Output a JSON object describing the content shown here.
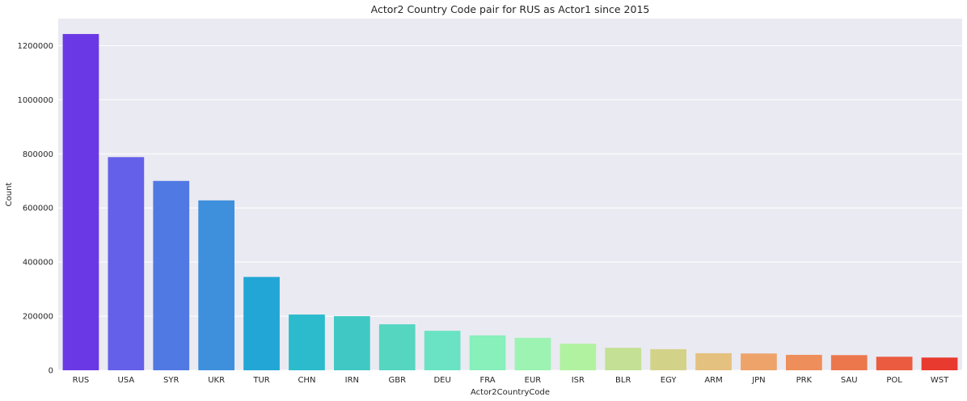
{
  "chart_data": {
    "type": "bar",
    "title": "Actor2 Country Code pair for RUS as Actor1 since 2015",
    "xlabel": "Actor2CountryCode",
    "ylabel": "Count",
    "ylim": [
      0,
      1300000
    ],
    "yticks": [
      0,
      200000,
      400000,
      600000,
      800000,
      1000000,
      1200000
    ],
    "ytick_labels": [
      "0",
      "200000",
      "400000",
      "600000",
      "800000",
      "1000000",
      "1200000"
    ],
    "grid": true,
    "categories": [
      "RUS",
      "USA",
      "SYR",
      "UKR",
      "TUR",
      "CHN",
      "IRN",
      "GBR",
      "DEU",
      "FRA",
      "EUR",
      "ISR",
      "BLR",
      "EGY",
      "ARM",
      "JPN",
      "PRK",
      "SAU",
      "POL",
      "WST"
    ],
    "values": [
      1243000,
      788000,
      700000,
      628000,
      345000,
      206000,
      200000,
      170000,
      146000,
      129000,
      120000,
      98000,
      83000,
      78000,
      63000,
      62000,
      57000,
      56000,
      50000,
      47000
    ],
    "colors": [
      "#6b38e6",
      "#6460e9",
      "#5079e4",
      "#3e8fdc",
      "#22a6d5",
      "#2bbbcc",
      "#40c9c4",
      "#55d6c1",
      "#6ae3c4",
      "#87f0bb",
      "#9cf3b2",
      "#b1f2a0",
      "#c3e094",
      "#d3d289",
      "#e4c17e",
      "#eda36a",
      "#ee8e5a",
      "#ec774d",
      "#ea5b3f",
      "#e83a2e"
    ],
    "background": "#eaeaf2",
    "gridline_color": "#ffffff"
  }
}
